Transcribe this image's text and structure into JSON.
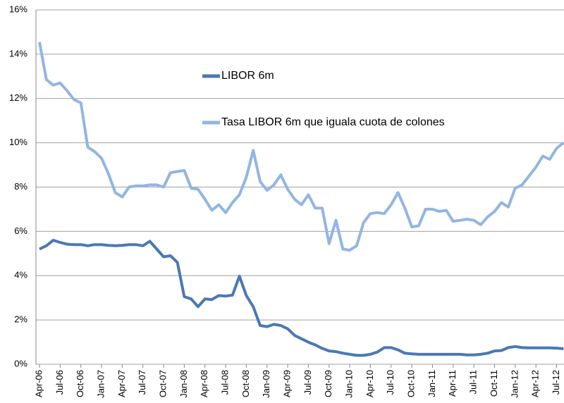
{
  "chart_data": {
    "type": "line",
    "categories": [
      "Apr-06",
      null,
      null,
      "Jul-06",
      null,
      null,
      "Oct-06",
      null,
      null,
      "Jan-07",
      null,
      null,
      "Apr-07",
      null,
      null,
      "Jul-07",
      null,
      null,
      "Oct-07",
      null,
      null,
      "Jan-08",
      null,
      null,
      "Apr-08",
      null,
      null,
      "Jul-08",
      null,
      null,
      "Oct-08",
      null,
      null,
      "Jan-09",
      null,
      null,
      "Apr-09",
      null,
      null,
      "Jul-09",
      null,
      null,
      "Oct-09",
      null,
      null,
      "Jan-10",
      null,
      null,
      "Apr-10",
      null,
      null,
      "Jul-10",
      null,
      null,
      "Oct-10",
      null,
      null,
      "Jan-11",
      null,
      null,
      "Apr-11",
      null,
      null,
      "Jul-11",
      null,
      null,
      "Oct-11",
      null,
      null,
      "Jan-12",
      null,
      null,
      "Apr-12",
      null,
      null,
      "Jul-12",
      null
    ],
    "series": [
      {
        "name": "LIBOR 6m",
        "color": "#4a78b5",
        "values": [
          5.2,
          5.35,
          5.6,
          5.5,
          5.42,
          5.4,
          5.4,
          5.35,
          5.4,
          5.4,
          5.37,
          5.35,
          5.37,
          5.4,
          5.4,
          5.35,
          5.55,
          5.2,
          4.85,
          4.9,
          4.6,
          3.05,
          2.95,
          2.6,
          2.95,
          2.92,
          3.1,
          3.08,
          3.12,
          3.98,
          3.1,
          2.6,
          1.75,
          1.7,
          1.8,
          1.75,
          1.6,
          1.3,
          1.15,
          1.0,
          0.87,
          0.72,
          0.6,
          0.57,
          0.5,
          0.45,
          0.4,
          0.4,
          0.45,
          0.55,
          0.75,
          0.75,
          0.65,
          0.5,
          0.47,
          0.45,
          0.45,
          0.45,
          0.45,
          0.45,
          0.45,
          0.45,
          0.42,
          0.42,
          0.45,
          0.5,
          0.6,
          0.62,
          0.75,
          0.8,
          0.75,
          0.74,
          0.74,
          0.74,
          0.74,
          0.73,
          0.7
        ]
      },
      {
        "name": "Tasa LIBOR 6m que iguala cuota de colones",
        "color": "#93b5e3",
        "values": [
          14.55,
          12.85,
          12.6,
          12.7,
          12.35,
          11.95,
          11.8,
          9.8,
          9.6,
          9.3,
          8.6,
          7.75,
          7.55,
          8.0,
          8.05,
          8.05,
          8.1,
          8.1,
          8.0,
          8.65,
          8.7,
          8.75,
          7.95,
          7.9,
          7.45,
          6.95,
          7.2,
          6.85,
          7.3,
          7.65,
          8.45,
          9.65,
          8.25,
          7.85,
          8.1,
          8.55,
          7.9,
          7.45,
          7.2,
          7.65,
          7.05,
          7.05,
          5.45,
          6.5,
          5.2,
          5.15,
          5.35,
          6.4,
          6.8,
          6.85,
          6.8,
          7.2,
          7.75,
          7.05,
          6.2,
          6.25,
          7.0,
          7.0,
          6.9,
          6.95,
          6.45,
          6.5,
          6.55,
          6.5,
          6.3,
          6.65,
          6.9,
          7.3,
          7.1,
          7.95,
          8.1,
          8.5,
          8.9,
          9.4,
          9.25,
          9.75,
          10.0
        ]
      }
    ],
    "ylim": [
      0,
      16
    ],
    "yticks": [
      {
        "value": 0,
        "label": "0%"
      },
      {
        "value": 2,
        "label": "2%"
      },
      {
        "value": 4,
        "label": "4%"
      },
      {
        "value": 6,
        "label": "6%"
      },
      {
        "value": 8,
        "label": "8%"
      },
      {
        "value": 10,
        "label": "10%"
      },
      {
        "value": 12,
        "label": "12%"
      },
      {
        "value": 14,
        "label": "14%"
      },
      {
        "value": 16,
        "label": "16%"
      }
    ],
    "grid": true
  }
}
